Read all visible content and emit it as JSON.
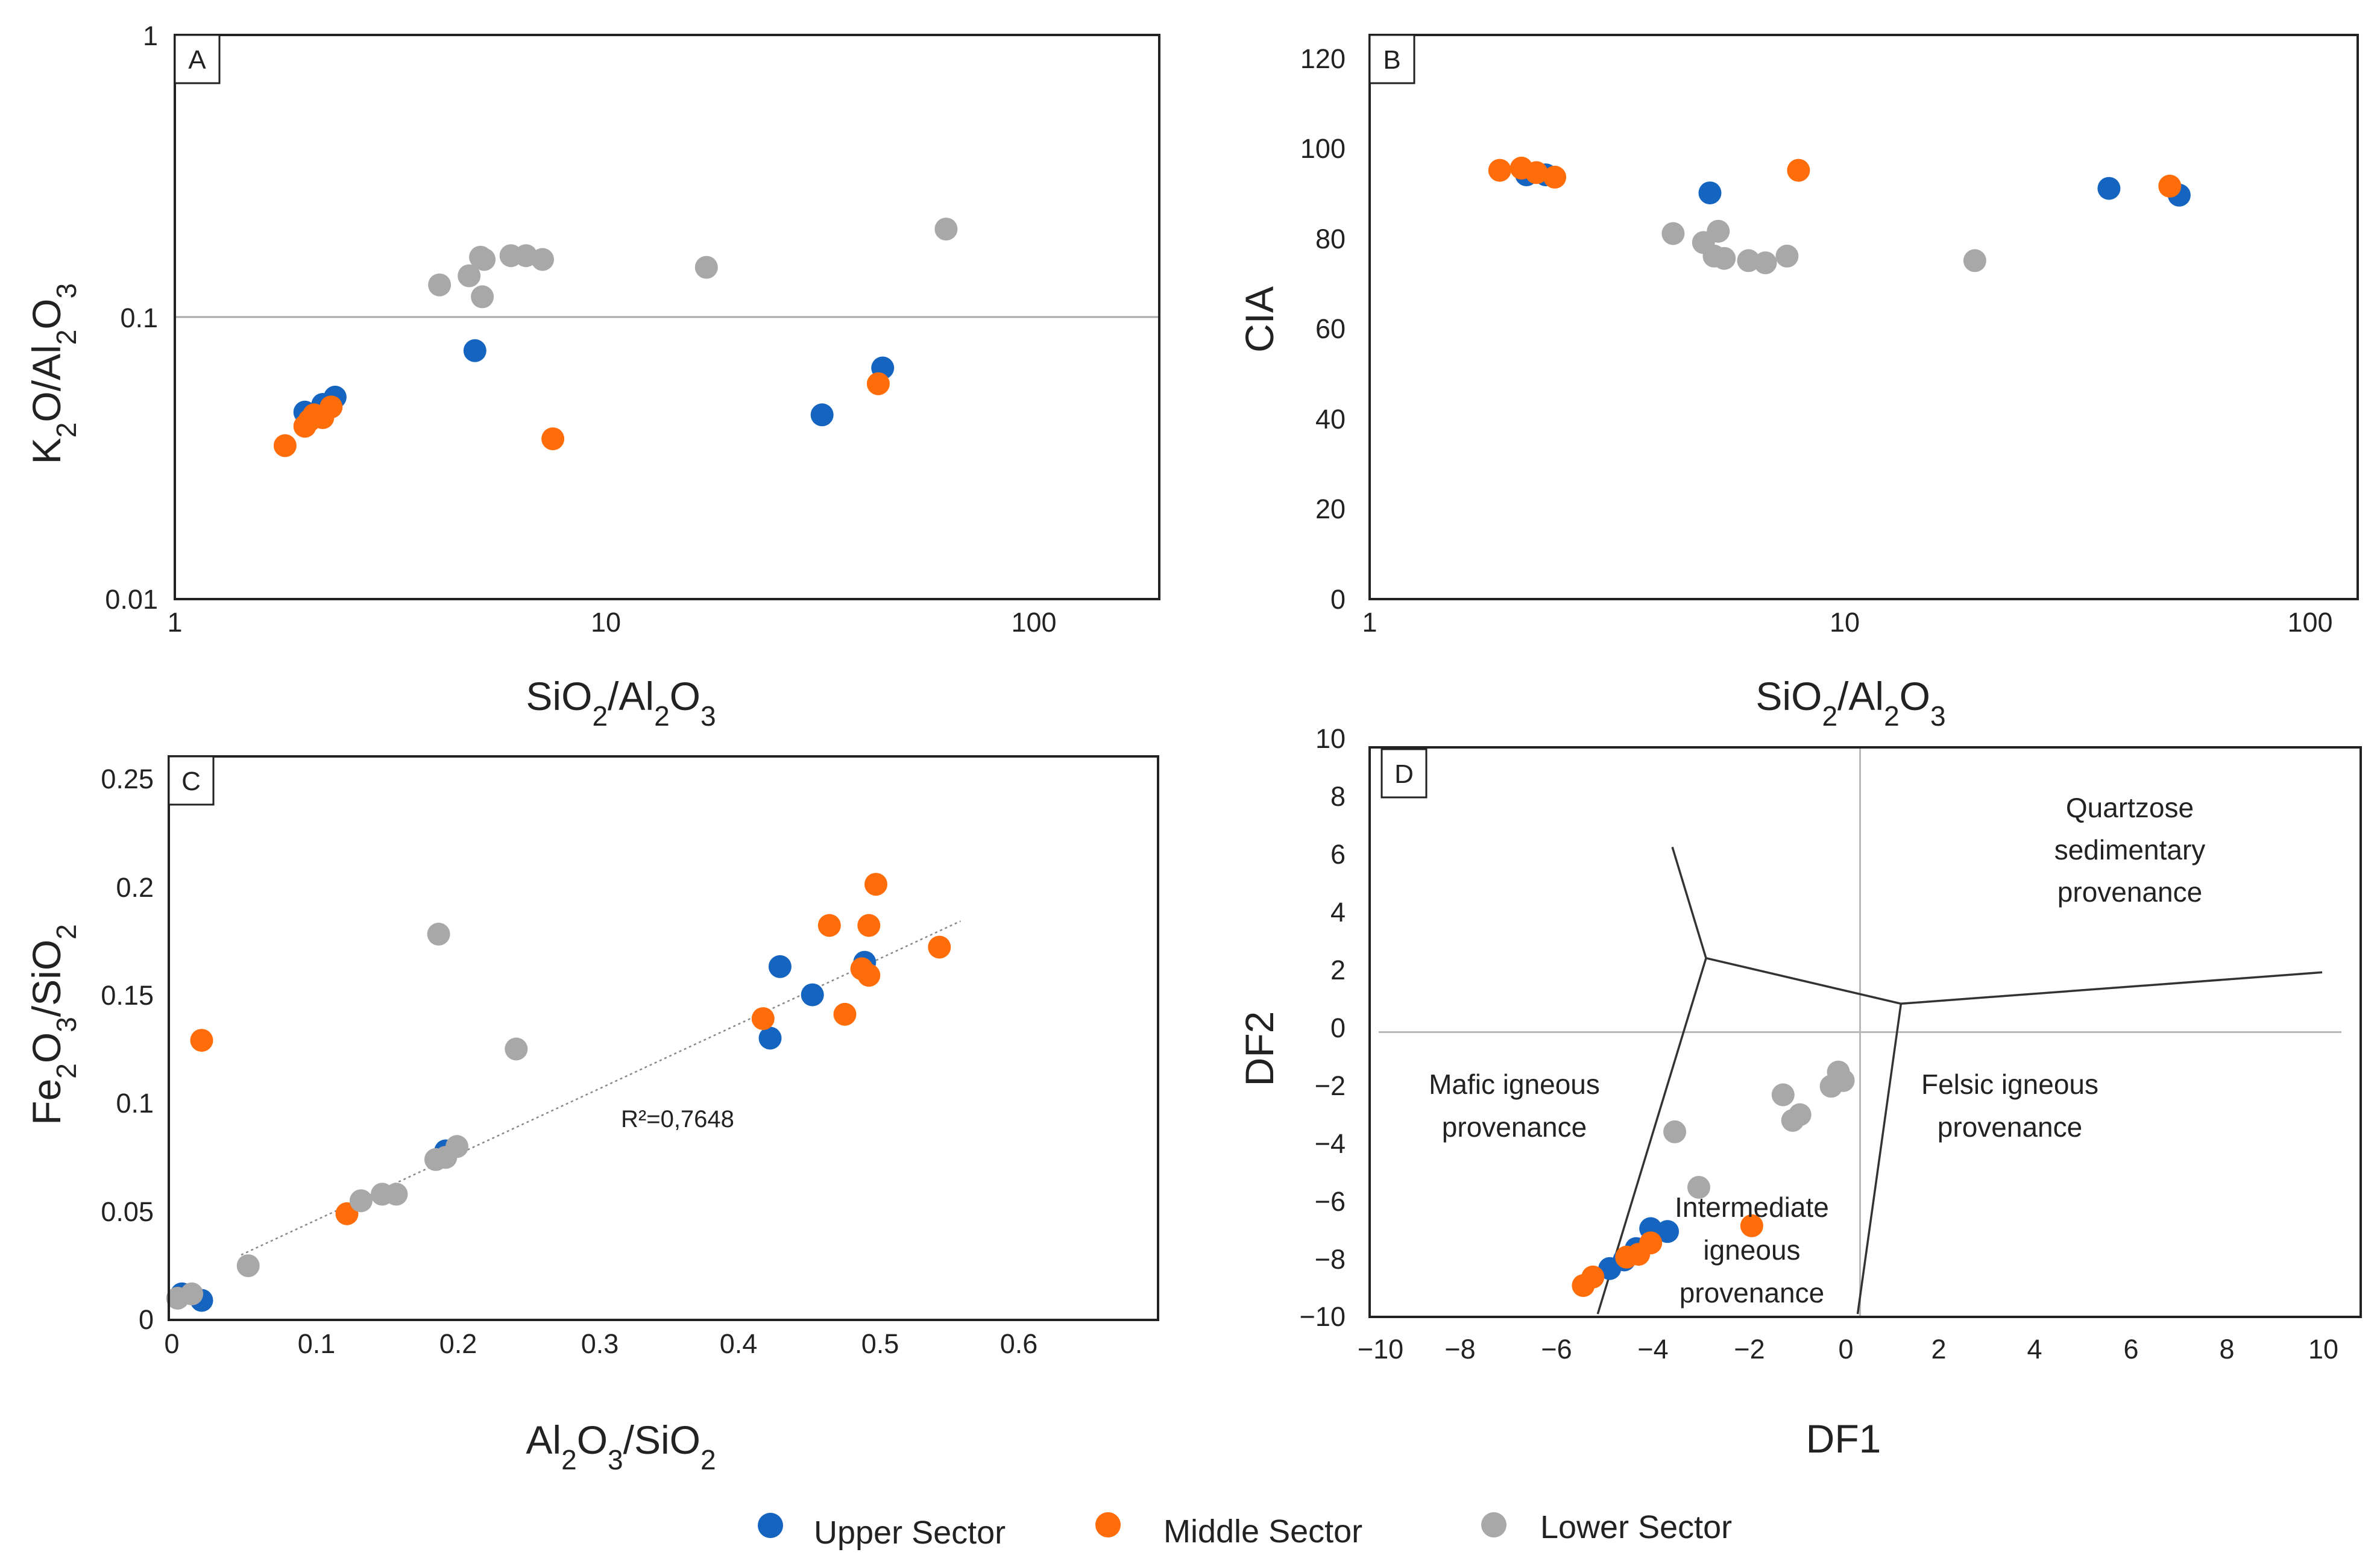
{
  "series_colors": {
    "upper": "#1565c0",
    "middle": "#ff6d0a",
    "lower": "#a8a8a8"
  },
  "legend": {
    "upper": "Upper Sector",
    "middle": "Middle Sector",
    "lower": "Lower Sector"
  },
  "panels": {
    "A": {
      "letter": "A",
      "x_ticks": [
        "1",
        "10",
        "100"
      ],
      "y_ticks": [
        "0.01",
        "0.1",
        "1"
      ]
    },
    "B": {
      "letter": "B",
      "x_ticks": [
        "1",
        "10",
        "100"
      ],
      "y_ticks": [
        "0",
        "20",
        "40",
        "60",
        "80",
        "100",
        "120"
      ],
      "ylabel": "CIA"
    },
    "C": {
      "letter": "C",
      "x_ticks": [
        "0",
        "0.1",
        "0.2",
        "0.3",
        "0.4",
        "0.5",
        "0.6"
      ],
      "y_ticks": [
        "0",
        "0.05",
        "0.1",
        "0.15",
        "0.2",
        "0.25"
      ],
      "annotation": "R²=0,7648"
    },
    "D": {
      "letter": "D",
      "x_ticks": [
        "−10",
        "−8",
        "−6",
        "−4",
        "−2",
        "0",
        "2",
        "4",
        "6",
        "8",
        "10"
      ],
      "y_ticks": [
        "−10",
        "−8",
        "−6",
        "−4",
        "−2",
        "0",
        "2",
        "4",
        "6",
        "8",
        "10"
      ],
      "xlabel": "DF1",
      "ylabel": "DF2",
      "regions": {
        "quartzose": [
          "Quartzose",
          "sedimentary",
          "provenance"
        ],
        "mafic": [
          "Mafic igneous",
          "provenance"
        ],
        "felsic": [
          "Felsic igneous",
          "provenance"
        ],
        "intermediate": [
          "Intermediate",
          "igneous",
          "provenance"
        ]
      }
    }
  },
  "chart_data": [
    {
      "panel": "A",
      "type": "scatter",
      "xlabel": "SiO2/Al2O3",
      "ylabel": "K2O/Al2O3",
      "xscale": "log",
      "yscale": "log",
      "xlim": [
        1,
        190
      ],
      "ylim": [
        0.01,
        1
      ],
      "reference_line_y": 0.1,
      "series": [
        {
          "name": "Upper Sector",
          "points": [
            [
              2.0,
              0.046
            ],
            [
              2.1,
              0.045
            ],
            [
              2.2,
              0.049
            ],
            [
              2.3,
              0.048
            ],
            [
              2.35,
              0.052
            ],
            [
              4.95,
              0.076
            ],
            [
              31.5,
              0.045
            ],
            [
              43.5,
              0.066
            ]
          ]
        },
        {
          "name": "Middle Sector",
          "points": [
            [
              1.8,
              0.035
            ],
            [
              2.0,
              0.041
            ],
            [
              2.05,
              0.043
            ],
            [
              2.1,
              0.045
            ],
            [
              2.2,
              0.044
            ],
            [
              2.3,
              0.048
            ],
            [
              7.5,
              0.037
            ],
            [
              42.5,
              0.058
            ]
          ]
        },
        {
          "name": "Lower Sector",
          "points": [
            [
              4.1,
              0.13
            ],
            [
              4.8,
              0.14
            ],
            [
              5.1,
              0.163
            ],
            [
              5.15,
              0.118
            ],
            [
              5.2,
              0.16
            ],
            [
              6.0,
              0.165
            ],
            [
              6.5,
              0.165
            ],
            [
              7.1,
              0.16
            ],
            [
              17.0,
              0.15
            ],
            [
              61.0,
              0.205
            ]
          ]
        }
      ]
    },
    {
      "panel": "B",
      "type": "scatter",
      "xlabel": "SiO2/Al2O3",
      "ylabel": "CIA",
      "xscale": "log",
      "xlim": [
        1,
        107
      ],
      "ylim": [
        0,
        125
      ],
      "series": [
        {
          "name": "Upper Sector",
          "points": [
            [
              2.1,
              94
            ],
            [
              2.3,
              94
            ],
            [
              5.0,
              90
            ],
            [
              33.0,
              91
            ],
            [
              46.0,
              89.5
            ]
          ]
        },
        {
          "name": "Middle Sector",
          "points": [
            [
              1.85,
              95
            ],
            [
              2.05,
              95.5
            ],
            [
              2.2,
              94.5
            ],
            [
              2.4,
              93.5
            ],
            [
              7.6,
              95
            ],
            [
              44.0,
              91.5
            ]
          ]
        },
        {
          "name": "Lower Sector",
          "points": [
            [
              4.2,
              81
            ],
            [
              4.85,
              79
            ],
            [
              5.1,
              76
            ],
            [
              5.2,
              81.5
            ],
            [
              5.35,
              75.5
            ],
            [
              6.0,
              75
            ],
            [
              6.5,
              74.5
            ],
            [
              7.2,
              76
            ],
            [
              17.5,
              75
            ]
          ]
        }
      ]
    },
    {
      "panel": "C",
      "type": "scatter",
      "xlabel": "Al2O3/SiO2",
      "ylabel": "Fe2O3/SiO2",
      "xlim": [
        0,
        0.7
      ],
      "ylim": [
        0,
        0.26
      ],
      "trendline": {
        "x": [
          0.05,
          0.56
        ],
        "y": [
          0.03,
          0.184
        ],
        "r2_label": "R²=0,7648"
      },
      "series": [
        {
          "name": "Upper Sector",
          "points": [
            [
              0.008,
              0.012
            ],
            [
              0.022,
              0.009
            ],
            [
              0.195,
              0.078
            ],
            [
              0.425,
              0.13
            ],
            [
              0.432,
              0.163
            ],
            [
              0.455,
              0.15
            ],
            [
              0.492,
              0.165
            ]
          ]
        },
        {
          "name": "Middle Sector",
          "points": [
            [
              0.022,
              0.129
            ],
            [
              0.125,
              0.049
            ],
            [
              0.42,
              0.139
            ],
            [
              0.467,
              0.182
            ],
            [
              0.478,
              0.141
            ],
            [
              0.49,
              0.162
            ],
            [
              0.495,
              0.182
            ],
            [
              0.495,
              0.159
            ],
            [
              0.5,
              0.201
            ],
            [
              0.545,
              0.172
            ]
          ]
        },
        {
          "name": "Lower Sector",
          "points": [
            [
              0.005,
              0.01
            ],
            [
              0.015,
              0.012
            ],
            [
              0.055,
              0.025
            ],
            [
              0.135,
              0.055
            ],
            [
              0.15,
              0.058
            ],
            [
              0.16,
              0.058
            ],
            [
              0.188,
              0.074
            ],
            [
              0.19,
              0.178
            ],
            [
              0.195,
              0.075
            ],
            [
              0.203,
              0.08
            ],
            [
              0.245,
              0.125
            ]
          ]
        }
      ]
    },
    {
      "panel": "D",
      "type": "scatter",
      "xlabel": "DF1",
      "ylabel": "DF2",
      "xlim": [
        -10,
        10.4
      ],
      "ylim": [
        -10,
        10
      ],
      "boundaries": [
        [
          [
            -3.9,
            6.5
          ],
          [
            -3.2,
            2.6
          ],
          [
            0.85,
            1.0
          ],
          [
            9.6,
            2.1
          ]
        ],
        [
          [
            -3.2,
            2.6
          ],
          [
            -5.45,
            -9.9
          ]
        ],
        [
          [
            0.85,
            1.0
          ],
          [
            -0.05,
            -9.9
          ]
        ]
      ],
      "series": [
        {
          "name": "Upper Sector",
          "points": [
            [
              -5.2,
              -8.3
            ],
            [
              -4.9,
              -8.0
            ],
            [
              -4.65,
              -7.6
            ],
            [
              -4.35,
              -6.9
            ],
            [
              -4.0,
              -7.0
            ]
          ]
        },
        {
          "name": "Middle Sector",
          "points": [
            [
              -5.75,
              -8.9
            ],
            [
              -5.55,
              -8.6
            ],
            [
              -4.85,
              -7.9
            ],
            [
              -4.6,
              -7.8
            ],
            [
              -4.35,
              -7.4
            ],
            [
              -2.25,
              -6.8
            ]
          ]
        },
        {
          "name": "Lower Sector",
          "points": [
            [
              -3.85,
              -3.5
            ],
            [
              -3.35,
              -5.45
            ],
            [
              -1.6,
              -2.2
            ],
            [
              -1.4,
              -3.1
            ],
            [
              -1.25,
              -2.9
            ],
            [
              -0.6,
              -1.9
            ],
            [
              -0.45,
              -1.4
            ],
            [
              -0.35,
              -1.7
            ]
          ]
        }
      ]
    }
  ]
}
